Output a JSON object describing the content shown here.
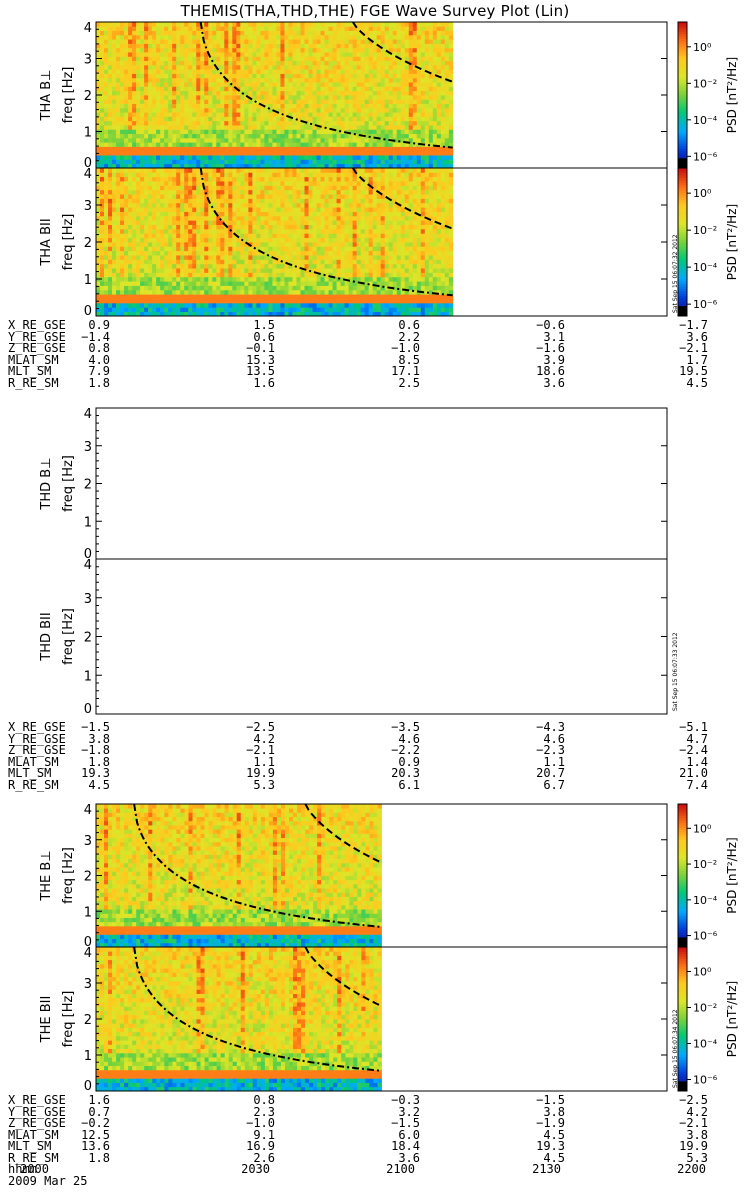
{
  "title": "THEMIS(THA,THD,THE) FGE Wave Survey Plot (Lin)",
  "time_axis": {
    "label_row": "hhmm",
    "ticks": [
      "2000",
      "2030",
      "2100",
      "2130",
      "2200"
    ],
    "date": "2009 Mar 25"
  },
  "colorbar": {
    "label": "PSD [nT²/Hz]",
    "ticks": [
      "10⁰",
      "10⁻²",
      "10⁻⁴",
      "10⁻⁶"
    ]
  },
  "stamps": [
    "Sat Sep 15 06:07:32 2012",
    "Sat Sep 15 06:07:33 2012",
    "Sat Sep 15 06:07:34 2012"
  ],
  "ephemeris": [
    {
      "rows": [
        {
          "label": "X_RE_GSE",
          "values": [
            "0.9",
            "1.5",
            "0.6",
            "−0.6",
            "−1.7"
          ]
        },
        {
          "label": "Y_RE_GSE",
          "values": [
            "−1.4",
            "0.6",
            "2.2",
            "3.1",
            "3.6"
          ]
        },
        {
          "label": "Z_RE_GSE",
          "values": [
            "0.8",
            "−0.1",
            "−1.0",
            "−1.6",
            "−2.1"
          ]
        },
        {
          "label": "MLAT_SM",
          "values": [
            "4.0",
            "15.3",
            "8.5",
            "3.9",
            "1.7"
          ]
        },
        {
          "label": "MLT_SM",
          "values": [
            "7.9",
            "13.5",
            "17.1",
            "18.6",
            "19.5"
          ]
        },
        {
          "label": "R_RE_SM",
          "values": [
            "1.8",
            "1.6",
            "2.5",
            "3.6",
            "4.5"
          ]
        }
      ]
    },
    {
      "rows": [
        {
          "label": "X_RE_GSE",
          "values": [
            "−1.5",
            "−2.5",
            "−3.5",
            "−4.3",
            "−5.1"
          ]
        },
        {
          "label": "Y_RE_GSE",
          "values": [
            "3.8",
            "4.2",
            "4.6",
            "4.6",
            "4.7"
          ]
        },
        {
          "label": "Z_RE_GSE",
          "values": [
            "−1.8",
            "−2.1",
            "−2.2",
            "−2.3",
            "−2.4"
          ]
        },
        {
          "label": "MLAT_SM",
          "values": [
            "1.8",
            "1.1",
            "0.9",
            "1.1",
            "1.4"
          ]
        },
        {
          "label": "MLT_SM",
          "values": [
            "19.3",
            "19.9",
            "20.3",
            "20.7",
            "21.0"
          ]
        },
        {
          "label": "R_RE_SM",
          "values": [
            "4.5",
            "5.3",
            "6.1",
            "6.7",
            "7.4"
          ]
        }
      ]
    },
    {
      "rows": [
        {
          "label": "X_RE_GSE",
          "values": [
            "1.6",
            "0.8",
            "−0.3",
            "−1.5",
            "−2.5"
          ]
        },
        {
          "label": "Y_RE_GSE",
          "values": [
            "0.7",
            "2.3",
            "3.2",
            "3.8",
            "4.2"
          ]
        },
        {
          "label": "Z_RE_GSE",
          "values": [
            "−0.2",
            "−1.0",
            "−1.5",
            "−1.9",
            "−2.1"
          ]
        },
        {
          "label": "MLAT_SM",
          "values": [
            "12.5",
            "9.1",
            "6.0",
            "4.5",
            "3.8"
          ]
        },
        {
          "label": "MLT_SM",
          "values": [
            "13.6",
            "16.9",
            "18.4",
            "19.3",
            "19.9"
          ]
        },
        {
          "label": "R_RE_SM",
          "values": [
            "1.8",
            "2.6",
            "3.6",
            "4.5",
            "5.3"
          ]
        }
      ]
    }
  ],
  "chart_data": [
    {
      "type": "heatmap",
      "panel": "THA B⊥",
      "probe_label": "THA B⊥",
      "ylabel": "freq [Hz]",
      "ylim": [
        0,
        4
      ],
      "yticks": [
        "0",
        "1",
        "2",
        "3",
        "4"
      ],
      "data_end": "2115",
      "has_data": true
    },
    {
      "type": "heatmap",
      "panel": "THA B∥",
      "probe_label": "THA BII",
      "ylabel": "freq [Hz]",
      "ylim": [
        0,
        4
      ],
      "yticks": [
        "0",
        "1",
        "2",
        "3",
        "4"
      ],
      "data_end": "2115",
      "has_data": true
    },
    {
      "type": "heatmap",
      "panel": "THD B⊥",
      "probe_label": "THD B⊥",
      "ylabel": "freq [Hz]",
      "ylim": [
        0,
        4
      ],
      "yticks": [
        "0",
        "1",
        "2",
        "3",
        "4"
      ],
      "has_data": false
    },
    {
      "type": "heatmap",
      "panel": "THD B∥",
      "probe_label": "THD BII",
      "ylabel": "freq [Hz]",
      "ylim": [
        0,
        4
      ],
      "yticks": [
        "0",
        "1",
        "2",
        "3",
        "4"
      ],
      "has_data": false
    },
    {
      "type": "heatmap",
      "panel": "THE B⊥",
      "probe_label": "THE B⊥",
      "ylabel": "freq [Hz]",
      "ylim": [
        0,
        4
      ],
      "yticks": [
        "0",
        "1",
        "2",
        "3",
        "4"
      ],
      "data_end": "2100",
      "has_data": true
    },
    {
      "type": "heatmap",
      "panel": "THE B∥",
      "probe_label": "THE BII",
      "ylabel": "freq [Hz]",
      "ylim": [
        0,
        4
      ],
      "yticks": [
        "0",
        "1",
        "2",
        "3",
        "4"
      ],
      "data_end": "2100",
      "has_data": true
    }
  ]
}
